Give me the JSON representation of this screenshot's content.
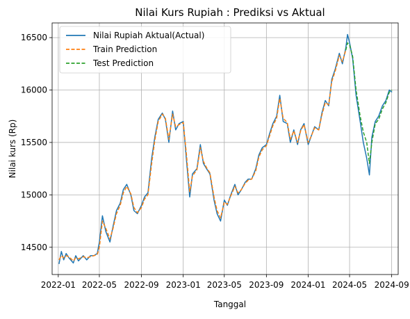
{
  "chart_data": {
    "type": "line",
    "title": "Nilai Kurs Rupiah : Prediksi vs Aktual",
    "xlabel": "Tanggal",
    "ylabel": "Nilai kurs (Rp)",
    "xlim": [
      "2021-12-14",
      "2024-09-20"
    ],
    "ylim": [
      14240,
      16640
    ],
    "xticks": [
      "2022-01",
      "2022-05",
      "2022-09",
      "2023-01",
      "2023-05",
      "2023-09",
      "2024-01",
      "2024-05",
      "2024-09"
    ],
    "yticks": [
      14500,
      15000,
      15500,
      16000,
      16500
    ],
    "grid": true,
    "legend_position": "top-left",
    "series": [
      {
        "name": " Nilai Rupiah Aktual(Actual)",
        "color": "#1f77b4",
        "style": "solid",
        "points": [
          [
            "2022-01-03",
            14340
          ],
          [
            "2022-01-10",
            14460
          ],
          [
            "2022-01-17",
            14380
          ],
          [
            "2022-01-24",
            14440
          ],
          [
            "2022-02-01",
            14400
          ],
          [
            "2022-02-14",
            14350
          ],
          [
            "2022-02-21",
            14420
          ],
          [
            "2022-03-01",
            14370
          ],
          [
            "2022-03-15",
            14420
          ],
          [
            "2022-03-25",
            14380
          ],
          [
            "2022-04-05",
            14420
          ],
          [
            "2022-04-15",
            14420
          ],
          [
            "2022-04-25",
            14440
          ],
          [
            "2022-05-01",
            14550
          ],
          [
            "2022-05-10",
            14800
          ],
          [
            "2022-05-20",
            14650
          ],
          [
            "2022-06-01",
            14550
          ],
          [
            "2022-06-10",
            14700
          ],
          [
            "2022-06-20",
            14850
          ],
          [
            "2022-07-01",
            14920
          ],
          [
            "2022-07-10",
            15050
          ],
          [
            "2022-07-20",
            15100
          ],
          [
            "2022-08-01",
            15000
          ],
          [
            "2022-08-10",
            14850
          ],
          [
            "2022-08-20",
            14820
          ],
          [
            "2022-09-01",
            14900
          ],
          [
            "2022-09-10",
            14980
          ],
          [
            "2022-09-20",
            15020
          ],
          [
            "2022-10-01",
            15350
          ],
          [
            "2022-10-10",
            15550
          ],
          [
            "2022-10-20",
            15720
          ],
          [
            "2022-11-01",
            15780
          ],
          [
            "2022-11-10",
            15720
          ],
          [
            "2022-11-20",
            15500
          ],
          [
            "2022-12-01",
            15800
          ],
          [
            "2022-12-10",
            15620
          ],
          [
            "2022-12-20",
            15680
          ],
          [
            "2023-01-01",
            15700
          ],
          [
            "2023-01-10",
            15350
          ],
          [
            "2023-01-20",
            14980
          ],
          [
            "2023-01-28",
            15200
          ],
          [
            "2023-02-10",
            15250
          ],
          [
            "2023-02-20",
            15480
          ],
          [
            "2023-03-01",
            15300
          ],
          [
            "2023-03-10",
            15250
          ],
          [
            "2023-03-20",
            15200
          ],
          [
            "2023-04-01",
            14950
          ],
          [
            "2023-04-10",
            14820
          ],
          [
            "2023-04-20",
            14750
          ],
          [
            "2023-05-01",
            14950
          ],
          [
            "2023-05-10",
            14900
          ],
          [
            "2023-05-20",
            15000
          ],
          [
            "2023-06-01",
            15100
          ],
          [
            "2023-06-10",
            15000
          ],
          [
            "2023-06-20",
            15050
          ],
          [
            "2023-07-01",
            15120
          ],
          [
            "2023-07-10",
            15150
          ],
          [
            "2023-07-20",
            15150
          ],
          [
            "2023-08-01",
            15250
          ],
          [
            "2023-08-10",
            15380
          ],
          [
            "2023-08-20",
            15450
          ],
          [
            "2023-09-01",
            15480
          ],
          [
            "2023-09-10",
            15580
          ],
          [
            "2023-09-20",
            15680
          ],
          [
            "2023-10-01",
            15750
          ],
          [
            "2023-10-10",
            15950
          ],
          [
            "2023-10-20",
            15700
          ],
          [
            "2023-11-01",
            15680
          ],
          [
            "2023-11-10",
            15500
          ],
          [
            "2023-11-20",
            15620
          ],
          [
            "2023-12-01",
            15480
          ],
          [
            "2023-12-10",
            15620
          ],
          [
            "2023-12-20",
            15680
          ],
          [
            "2024-01-01",
            15480
          ],
          [
            "2024-01-10",
            15560
          ],
          [
            "2024-01-20",
            15650
          ],
          [
            "2024-02-01",
            15620
          ],
          [
            "2024-02-10",
            15780
          ],
          [
            "2024-02-20",
            15900
          ],
          [
            "2024-03-01",
            15850
          ],
          [
            "2024-03-10",
            16100
          ],
          [
            "2024-03-20",
            16200
          ],
          [
            "2024-04-01",
            16350
          ],
          [
            "2024-04-10",
            16250
          ],
          [
            "2024-04-20",
            16400
          ],
          [
            "2024-04-25",
            16530
          ],
          [
            "2024-05-01",
            16450
          ],
          [
            "2024-05-10",
            16300
          ],
          [
            "2024-05-20",
            15950
          ],
          [
            "2024-06-01",
            15700
          ],
          [
            "2024-06-10",
            15500
          ],
          [
            "2024-06-20",
            15350
          ],
          [
            "2024-06-28",
            15190
          ],
          [
            "2024-07-05",
            15550
          ],
          [
            "2024-07-15",
            15700
          ],
          [
            "2024-07-25",
            15750
          ],
          [
            "2024-08-05",
            15850
          ],
          [
            "2024-08-15",
            15900
          ],
          [
            "2024-08-25",
            16000
          ],
          [
            "2024-09-02",
            15980
          ]
        ]
      },
      {
        "name": "Train Prediction",
        "color": "#ff7f0e",
        "style": "dashed",
        "points": [
          [
            "2022-01-03",
            14380
          ],
          [
            "2022-01-10",
            14420
          ],
          [
            "2022-01-17",
            14400
          ],
          [
            "2022-01-24",
            14420
          ],
          [
            "2022-02-01",
            14410
          ],
          [
            "2022-02-14",
            14370
          ],
          [
            "2022-02-21",
            14400
          ],
          [
            "2022-03-01",
            14390
          ],
          [
            "2022-03-15",
            14410
          ],
          [
            "2022-03-25",
            14400
          ],
          [
            "2022-04-05",
            14410
          ],
          [
            "2022-04-15",
            14420
          ],
          [
            "2022-04-25",
            14430
          ],
          [
            "2022-05-01",
            14500
          ],
          [
            "2022-05-10",
            14750
          ],
          [
            "2022-05-20",
            14680
          ],
          [
            "2022-06-01",
            14580
          ],
          [
            "2022-06-10",
            14680
          ],
          [
            "2022-06-20",
            14820
          ],
          [
            "2022-07-01",
            14900
          ],
          [
            "2022-07-10",
            15020
          ],
          [
            "2022-07-20",
            15080
          ],
          [
            "2022-08-01",
            15010
          ],
          [
            "2022-08-10",
            14880
          ],
          [
            "2022-08-20",
            14830
          ],
          [
            "2022-09-01",
            14880
          ],
          [
            "2022-09-10",
            14960
          ],
          [
            "2022-09-20",
            15000
          ],
          [
            "2022-10-01",
            15300
          ],
          [
            "2022-10-10",
            15520
          ],
          [
            "2022-10-20",
            15700
          ],
          [
            "2022-11-01",
            15770
          ],
          [
            "2022-11-10",
            15730
          ],
          [
            "2022-11-20",
            15530
          ],
          [
            "2022-12-01",
            15770
          ],
          [
            "2022-12-10",
            15650
          ],
          [
            "2022-12-20",
            15670
          ],
          [
            "2023-01-01",
            15690
          ],
          [
            "2023-01-10",
            15400
          ],
          [
            "2023-01-20",
            15030
          ],
          [
            "2023-01-28",
            15180
          ],
          [
            "2023-02-10",
            15240
          ],
          [
            "2023-02-20",
            15450
          ],
          [
            "2023-03-01",
            15320
          ],
          [
            "2023-03-10",
            15260
          ],
          [
            "2023-03-20",
            15210
          ],
          [
            "2023-04-01",
            14980
          ],
          [
            "2023-04-10",
            14850
          ],
          [
            "2023-04-20",
            14780
          ],
          [
            "2023-05-01",
            14930
          ],
          [
            "2023-05-10",
            14910
          ],
          [
            "2023-05-20",
            14990
          ],
          [
            "2023-06-01",
            15080
          ],
          [
            "2023-06-10",
            15020
          ],
          [
            "2023-06-20",
            15050
          ],
          [
            "2023-07-01",
            15110
          ],
          [
            "2023-07-10",
            15140
          ],
          [
            "2023-07-20",
            15150
          ],
          [
            "2023-08-01",
            15230
          ],
          [
            "2023-08-10",
            15360
          ],
          [
            "2023-08-20",
            15430
          ],
          [
            "2023-09-01",
            15470
          ],
          [
            "2023-09-10",
            15560
          ],
          [
            "2023-09-20",
            15660
          ],
          [
            "2023-10-01",
            15730
          ],
          [
            "2023-10-10",
            15920
          ],
          [
            "2023-10-20",
            15730
          ],
          [
            "2023-11-01",
            15690
          ],
          [
            "2023-11-10",
            15530
          ],
          [
            "2023-11-20",
            15610
          ],
          [
            "2023-12-01",
            15500
          ],
          [
            "2023-12-10",
            15610
          ],
          [
            "2023-12-20",
            15670
          ],
          [
            "2024-01-01",
            15500
          ],
          [
            "2024-01-10",
            15560
          ],
          [
            "2024-01-20",
            15640
          ],
          [
            "2024-02-01",
            15620
          ],
          [
            "2024-02-10",
            15760
          ],
          [
            "2024-02-20",
            15880
          ],
          [
            "2024-03-01",
            15860
          ],
          [
            "2024-03-10",
            16080
          ],
          [
            "2024-03-20",
            16180
          ],
          [
            "2024-04-01",
            16330
          ],
          [
            "2024-04-10",
            16270
          ],
          [
            "2024-04-20",
            16380
          ]
        ]
      },
      {
        "name": "Test Prediction",
        "color": "#2ca02c",
        "style": "dashed",
        "points": [
          [
            "2024-04-20",
            16380
          ],
          [
            "2024-04-25",
            16450
          ],
          [
            "2024-05-01",
            16430
          ],
          [
            "2024-05-10",
            16320
          ],
          [
            "2024-05-20",
            16000
          ],
          [
            "2024-06-01",
            15750
          ],
          [
            "2024-06-10",
            15600
          ],
          [
            "2024-06-20",
            15500
          ],
          [
            "2024-06-28",
            15300
          ],
          [
            "2024-07-05",
            15500
          ],
          [
            "2024-07-15",
            15680
          ],
          [
            "2024-07-25",
            15720
          ],
          [
            "2024-08-05",
            15820
          ],
          [
            "2024-08-15",
            15880
          ],
          [
            "2024-08-25",
            15980
          ],
          [
            "2024-09-02",
            16000
          ]
        ]
      }
    ]
  }
}
